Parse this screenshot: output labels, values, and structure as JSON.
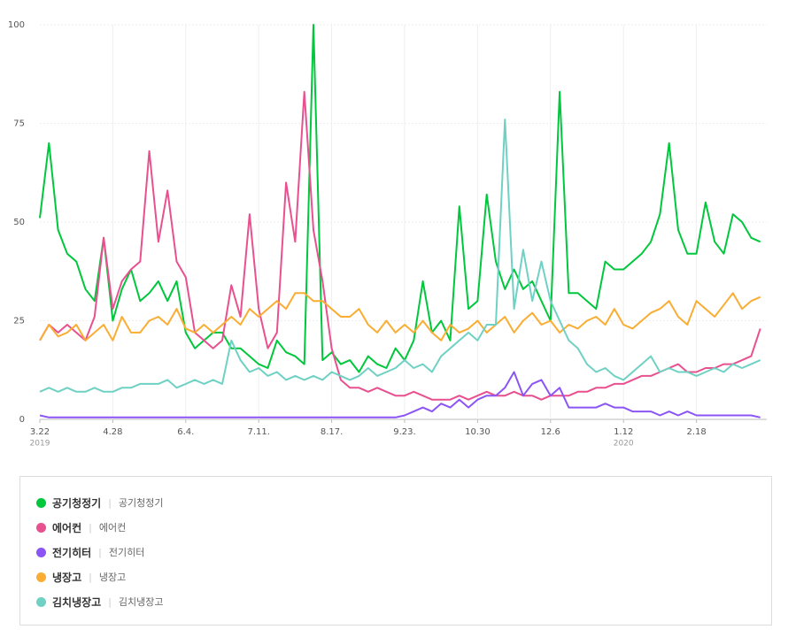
{
  "chart_data": {
    "type": "line",
    "categories": [
      "3.22",
      null,
      null,
      null,
      null,
      null,
      null,
      null,
      "4.28",
      null,
      null,
      null,
      null,
      null,
      null,
      null,
      "6.4.",
      null,
      null,
      null,
      null,
      null,
      null,
      null,
      "7.11.",
      null,
      null,
      null,
      null,
      null,
      null,
      null,
      "8.17.",
      null,
      null,
      null,
      null,
      null,
      null,
      null,
      "9.23.",
      null,
      null,
      null,
      null,
      null,
      null,
      null,
      "10.30",
      null,
      null,
      null,
      null,
      null,
      null,
      null,
      "12.6",
      null,
      null,
      null,
      null,
      null,
      null,
      null,
      "1.12",
      null,
      null,
      null,
      null,
      null,
      null,
      null,
      "2.18",
      null,
      null,
      null,
      null,
      null,
      null,
      null
    ],
    "category_sublabels": [
      "2019",
      null,
      null,
      null,
      null,
      null,
      null,
      null,
      null,
      null,
      null,
      null,
      null,
      null,
      null,
      null,
      null,
      null,
      null,
      null,
      null,
      null,
      null,
      null,
      null,
      null,
      null,
      null,
      null,
      null,
      null,
      null,
      null,
      null,
      null,
      null,
      null,
      null,
      null,
      null,
      null,
      null,
      null,
      null,
      null,
      null,
      null,
      null,
      null,
      null,
      null,
      null,
      null,
      null,
      null,
      null,
      null,
      null,
      null,
      null,
      null,
      null,
      null,
      null,
      "2020",
      null,
      null,
      null,
      null,
      null,
      null,
      null,
      null,
      null,
      null,
      null,
      null,
      null,
      null,
      null
    ],
    "ylim": [
      0,
      100
    ],
    "yticks": [
      0,
      25,
      50,
      75,
      100
    ],
    "grid": true,
    "series": [
      {
        "name": "공기청정기",
        "keywords": "공기청정기",
        "color": "#00c73c",
        "values": [
          51,
          70,
          48,
          42,
          40,
          33,
          30,
          46,
          25,
          33,
          38,
          30,
          32,
          35,
          30,
          35,
          22,
          18,
          20,
          22,
          22,
          18,
          18,
          16,
          14,
          13,
          20,
          17,
          16,
          14,
          100,
          15,
          17,
          14,
          15,
          12,
          16,
          14,
          13,
          18,
          15,
          20,
          35,
          22,
          25,
          20,
          54,
          28,
          30,
          57,
          40,
          33,
          38,
          33,
          35,
          30,
          25,
          83,
          32,
          32,
          30,
          28,
          40,
          38,
          38,
          40,
          42,
          45,
          52,
          70,
          48,
          42,
          42,
          55,
          45,
          42,
          52,
          50,
          46,
          45
        ]
      },
      {
        "name": "에어컨",
        "keywords": "에어컨",
        "color": "#e8508f",
        "values": [
          20,
          24,
          22,
          24,
          22,
          20,
          26,
          46,
          28,
          35,
          38,
          40,
          68,
          45,
          58,
          40,
          36,
          22,
          20,
          18,
          20,
          34,
          26,
          52,
          28,
          18,
          22,
          60,
          45,
          83,
          48,
          35,
          18,
          10,
          8,
          8,
          7,
          8,
          7,
          6,
          6,
          7,
          6,
          5,
          5,
          5,
          6,
          5,
          6,
          7,
          6,
          6,
          7,
          6,
          6,
          5,
          6,
          6,
          6,
          7,
          7,
          8,
          8,
          9,
          9,
          10,
          11,
          11,
          12,
          13,
          14,
          12,
          12,
          13,
          13,
          14,
          14,
          15,
          16,
          23
        ]
      },
      {
        "name": "전기히터",
        "keywords": "전기히터",
        "color": "#8b55f5",
        "values": [
          1,
          0.5,
          0.5,
          0.5,
          0.5,
          0.5,
          0.5,
          0.5,
          0.5,
          0.5,
          0.5,
          0.5,
          0.5,
          0.5,
          0.5,
          0.5,
          0.5,
          0.5,
          0.5,
          0.5,
          0.5,
          0.5,
          0.5,
          0.5,
          0.5,
          0.5,
          0.5,
          0.5,
          0.5,
          0.5,
          0.5,
          0.5,
          0.5,
          0.5,
          0.5,
          0.5,
          0.5,
          0.5,
          0.5,
          0.5,
          1,
          2,
          3,
          2,
          4,
          3,
          5,
          3,
          5,
          6,
          6,
          8,
          12,
          6,
          9,
          10,
          6,
          8,
          3,
          3,
          3,
          3,
          4,
          3,
          3,
          2,
          2,
          2,
          1,
          2,
          1,
          2,
          1,
          1,
          1,
          1,
          1,
          1,
          1,
          0.5
        ]
      },
      {
        "name": "냉장고",
        "keywords": "냉장고",
        "color": "#f9ad33",
        "values": [
          20,
          24,
          21,
          22,
          24,
          20,
          22,
          24,
          20,
          26,
          22,
          22,
          25,
          26,
          24,
          28,
          23,
          22,
          24,
          22,
          24,
          26,
          24,
          28,
          26,
          28,
          30,
          28,
          32,
          32,
          30,
          30,
          28,
          26,
          26,
          28,
          24,
          22,
          25,
          22,
          24,
          22,
          25,
          22,
          20,
          24,
          22,
          23,
          25,
          22,
          24,
          26,
          22,
          25,
          27,
          24,
          25,
          22,
          24,
          23,
          25,
          26,
          24,
          28,
          24,
          23,
          25,
          27,
          28,
          30,
          26,
          24,
          30,
          28,
          26,
          29,
          32,
          28,
          30,
          31
        ]
      },
      {
        "name": "김치냉장고",
        "keywords": "김치냉장고",
        "color": "#6fd1c4",
        "values": [
          7,
          8,
          7,
          8,
          7,
          7,
          8,
          7,
          7,
          8,
          8,
          9,
          9,
          9,
          10,
          8,
          9,
          10,
          9,
          10,
          9,
          20,
          15,
          12,
          13,
          11,
          12,
          10,
          11,
          10,
          11,
          10,
          12,
          11,
          10,
          11,
          13,
          11,
          12,
          13,
          15,
          13,
          14,
          12,
          16,
          18,
          20,
          22,
          20,
          24,
          24,
          76,
          28,
          43,
          30,
          40,
          30,
          25,
          20,
          18,
          14,
          12,
          13,
          11,
          10,
          12,
          14,
          16,
          12,
          13,
          12,
          12,
          11,
          12,
          13,
          12,
          14,
          13,
          14,
          15
        ]
      }
    ]
  }
}
